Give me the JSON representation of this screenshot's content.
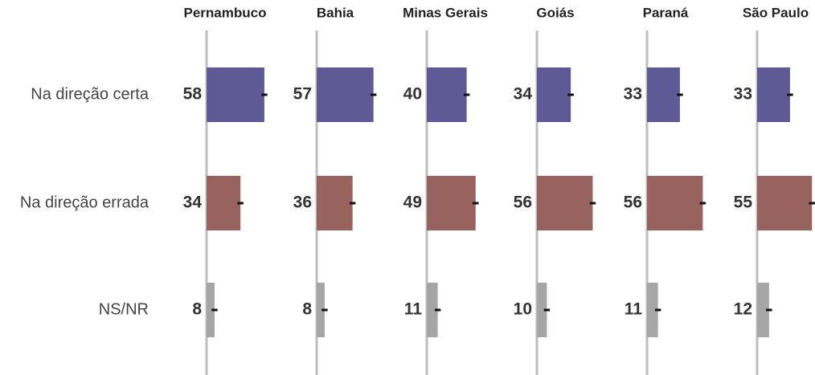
{
  "chart_data": {
    "type": "bar",
    "categories": [
      "Na direção certa",
      "Na direção errada",
      "NS/NR"
    ],
    "colors": [
      "#5d5a96",
      "#98625f",
      "#a6a6a6"
    ],
    "panels": [
      {
        "title": "Pernambuco",
        "values": [
          58,
          34,
          8
        ],
        "errors": [
          3,
          3,
          3
        ]
      },
      {
        "title": "Bahia",
        "values": [
          57,
          36,
          8
        ],
        "errors": [
          3,
          3,
          3
        ]
      },
      {
        "title": "Minas Gerais",
        "values": [
          40,
          49,
          11
        ],
        "errors": [
          3,
          3,
          3
        ]
      },
      {
        "title": "Goiás",
        "values": [
          34,
          56,
          10
        ],
        "errors": [
          3,
          3,
          3
        ]
      },
      {
        "title": "Paraná",
        "values": [
          33,
          56,
          11
        ],
        "errors": [
          3,
          3,
          3
        ]
      },
      {
        "title": "São Paulo",
        "values": [
          33,
          55,
          12
        ],
        "errors": [
          3,
          3,
          3
        ]
      }
    ]
  }
}
